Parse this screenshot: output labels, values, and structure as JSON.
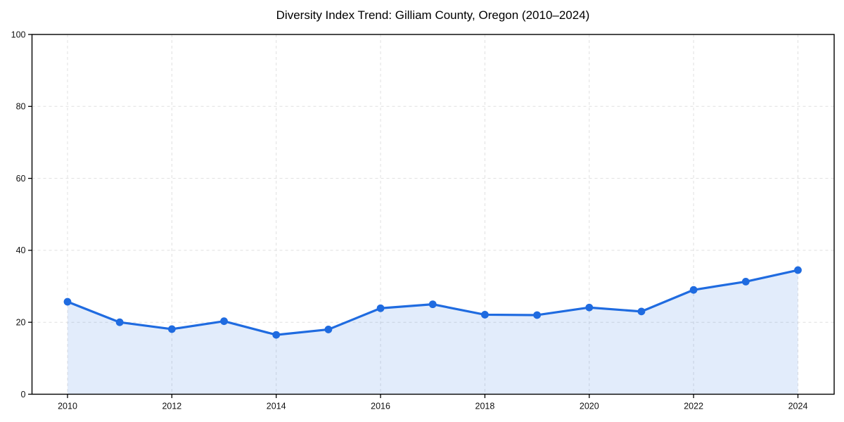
{
  "chart_data": {
    "type": "area",
    "title": "Diversity Index Trend: Gilliam County, Oregon (2010–2024)",
    "xlabel": "",
    "ylabel": "",
    "x": [
      2010,
      2011,
      2012,
      2013,
      2014,
      2015,
      2016,
      2017,
      2018,
      2019,
      2020,
      2021,
      2022,
      2023,
      2024
    ],
    "series": [
      {
        "name": "Diversity Index",
        "values": [
          25.7,
          20.0,
          18.1,
          20.3,
          16.5,
          18.0,
          23.9,
          25.0,
          22.1,
          22.0,
          24.1,
          23.0,
          29.0,
          31.3,
          34.5
        ]
      }
    ],
    "ylim": [
      0,
      100
    ],
    "yticks": [
      0,
      20,
      40,
      60,
      80,
      100
    ],
    "xticks": [
      2010,
      2012,
      2014,
      2016,
      2018,
      2020,
      2022,
      2024
    ],
    "grid": true,
    "grid_style": "dashed",
    "legend": "none",
    "marker": "circle",
    "colors": {
      "line": "#1f6be0",
      "marker": "#1f6be0",
      "fill": "rgba(31,107,224,0.13)",
      "grid": "#e0e0e0",
      "spine": "#000000",
      "tick_label": "#111111",
      "background": "#ffffff"
    }
  }
}
